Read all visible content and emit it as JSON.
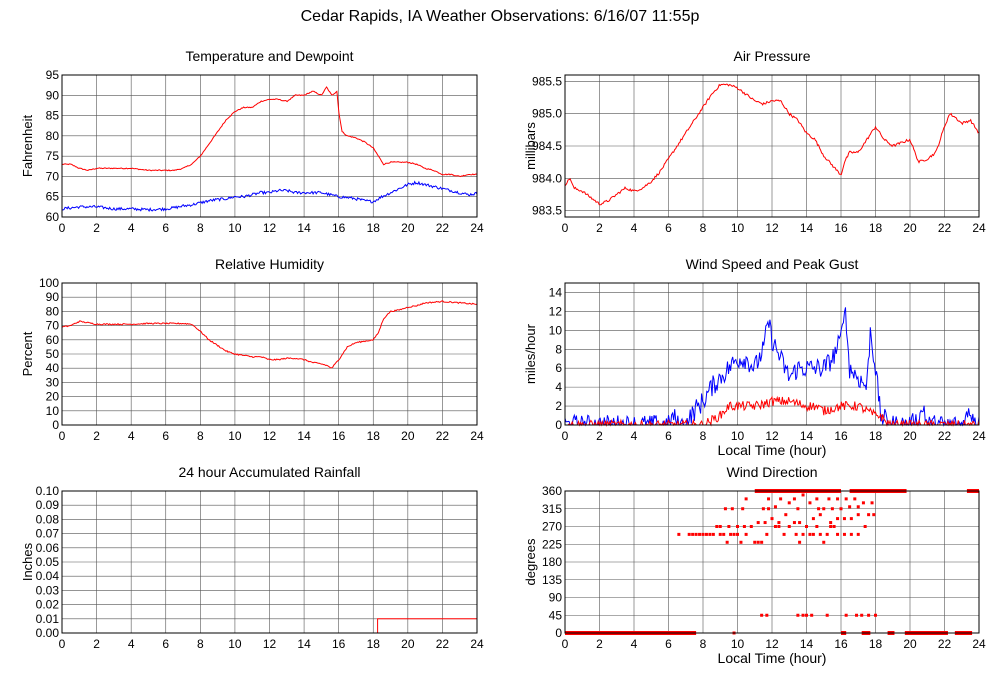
{
  "page": {
    "title": "Cedar Rapids, IA Weather Observations: 6/16/07 11:55p"
  },
  "colors": {
    "red": "#ff0000",
    "blue": "#0000ff",
    "grid": "#555555",
    "frame": "#000000"
  },
  "chart_data": [
    {
      "id": "temp",
      "type": "line",
      "title": "Temperature and Dewpoint",
      "ylabel": "Fahrenheit",
      "xlabel": "",
      "xlim": [
        0,
        24
      ],
      "ylim": [
        60,
        95
      ],
      "xticks": [
        0,
        2,
        4,
        6,
        8,
        10,
        12,
        14,
        16,
        18,
        20,
        22,
        24
      ],
      "yticks": [
        60,
        65,
        70,
        75,
        80,
        85,
        90,
        95
      ],
      "grid": true,
      "series": [
        {
          "color": "#ff0000",
          "noise": 0.25,
          "x": [
            0,
            0.5,
            1,
            1.5,
            2,
            3,
            4,
            5,
            6,
            6.5,
            7,
            7.5,
            8,
            8.5,
            9,
            9.5,
            10,
            10.5,
            11,
            11.5,
            12,
            12.5,
            13,
            13.5,
            14,
            14.5,
            15,
            15.3,
            15.6,
            15.9,
            16,
            16.2,
            16.5,
            17,
            17.5,
            18,
            18.3,
            18.6,
            19,
            20,
            20.5,
            21,
            21.5,
            22,
            22.5,
            23,
            23.5,
            24
          ],
          "y": [
            73,
            73,
            72,
            71.5,
            72,
            72,
            72,
            71.5,
            71.5,
            71.5,
            72,
            73,
            75,
            78,
            81,
            84,
            86,
            87,
            87,
            88.5,
            89,
            89,
            88.5,
            90,
            90,
            91,
            90,
            92,
            90,
            91,
            86,
            81,
            80,
            79.5,
            78.5,
            77,
            75,
            73,
            73.5,
            73.5,
            73,
            72,
            71.5,
            70.5,
            70.5,
            70,
            70.5,
            70.5
          ]
        },
        {
          "color": "#0000ff",
          "noise": 0.7,
          "x": [
            0,
            1,
            2,
            3,
            4,
            5,
            6,
            6.5,
            7,
            7.5,
            8,
            8.5,
            9,
            9.5,
            10,
            10.5,
            11,
            11.5,
            12,
            12.5,
            13,
            13.5,
            14,
            14.5,
            15,
            15.5,
            16,
            16.5,
            17,
            17.5,
            18,
            18.5,
            19,
            19.5,
            20,
            20.5,
            21,
            21.5,
            22,
            22.5,
            23,
            23.5,
            24
          ],
          "y": [
            62,
            62.5,
            62.5,
            62,
            62,
            61.8,
            62,
            62.3,
            62.7,
            63,
            63.5,
            64,
            64.3,
            64.5,
            65,
            65,
            65.5,
            66,
            66,
            66.5,
            66.5,
            66,
            66,
            66,
            66,
            65.5,
            65,
            64.8,
            64.5,
            64,
            63.8,
            65,
            66,
            67,
            68,
            68.5,
            68,
            67.5,
            67,
            66.5,
            66,
            65.5,
            65.8
          ]
        }
      ]
    },
    {
      "id": "pressure",
      "type": "line",
      "title": "Air Pressure",
      "ylabel": "millibars",
      "xlabel": "",
      "xlim": [
        0,
        24
      ],
      "ylim": [
        983.4,
        985.6
      ],
      "xticks": [
        0,
        2,
        4,
        6,
        8,
        10,
        12,
        14,
        16,
        18,
        20,
        22,
        24
      ],
      "yticks": [
        983.5,
        984.0,
        984.5,
        985.0,
        985.5
      ],
      "ytick_labels": [
        "983.5",
        "984.0",
        "984.5",
        "985.0",
        "985.5"
      ],
      "grid": true,
      "series": [
        {
          "color": "#ff0000",
          "noise": 0.04,
          "x": [
            0,
            0.3,
            0.5,
            1,
            1.5,
            2,
            2.5,
            3,
            3.5,
            4,
            4.5,
            5,
            5.5,
            6,
            6.5,
            7,
            7.5,
            8,
            8.5,
            9,
            9.5,
            10,
            10.5,
            11,
            11.5,
            12,
            12.5,
            13,
            13.5,
            14,
            14.5,
            15,
            15.5,
            16,
            16.2,
            16.5,
            17,
            17.5,
            18,
            18.5,
            19,
            19.5,
            20,
            20.5,
            21,
            21.5,
            22,
            22.3,
            22.6,
            23,
            23.5,
            24
          ],
          "y": [
            983.9,
            984.0,
            983.85,
            983.8,
            983.7,
            983.6,
            983.65,
            983.75,
            983.85,
            983.8,
            983.85,
            983.95,
            984.1,
            984.3,
            984.5,
            984.7,
            984.9,
            985.1,
            985.3,
            985.45,
            985.45,
            985.4,
            985.3,
            985.2,
            985.15,
            985.2,
            985.2,
            985.0,
            984.9,
            984.7,
            984.6,
            984.35,
            984.2,
            984.05,
            984.25,
            984.4,
            984.4,
            984.6,
            984.8,
            984.6,
            984.5,
            984.55,
            984.6,
            984.25,
            984.3,
            984.4,
            984.8,
            985.0,
            984.95,
            984.85,
            984.9,
            984.7
          ]
        }
      ]
    },
    {
      "id": "humidity",
      "type": "line",
      "title": "Relative Humidity",
      "ylabel": "Percent",
      "xlabel": "",
      "xlim": [
        0,
        24
      ],
      "ylim": [
        0,
        100
      ],
      "xticks": [
        0,
        2,
        4,
        6,
        8,
        10,
        12,
        14,
        16,
        18,
        20,
        22,
        24
      ],
      "yticks": [
        0,
        10,
        20,
        30,
        40,
        50,
        60,
        70,
        80,
        90,
        100
      ],
      "grid": true,
      "series": [
        {
          "color": "#ff0000",
          "noise": 0.9,
          "x": [
            0,
            0.5,
            1,
            1.5,
            2,
            3,
            4,
            5,
            6,
            7,
            7.5,
            8,
            8.5,
            9,
            9.5,
            10,
            10.5,
            11,
            11.5,
            12,
            12.5,
            13,
            13.5,
            14,
            14.5,
            15,
            15.3,
            15.6,
            16,
            16.5,
            17,
            17.5,
            18,
            18.3,
            18.6,
            19,
            19.5,
            20,
            20.5,
            21,
            22,
            23,
            24
          ],
          "y": [
            69,
            70,
            73,
            72,
            71,
            71,
            71,
            71.5,
            71.5,
            71.5,
            71,
            66,
            60,
            56,
            52,
            50,
            49,
            48,
            48,
            46,
            46,
            47,
            47,
            46,
            44,
            43,
            42,
            40,
            46,
            55,
            58,
            59,
            60,
            65,
            75,
            80,
            81,
            83,
            84,
            86,
            87,
            86,
            85
          ]
        }
      ]
    },
    {
      "id": "wind",
      "type": "line",
      "title": "Wind Speed and Peak Gust",
      "ylabel": "miles/hour",
      "xlabel": "Local Time (hour)",
      "xlim": [
        0,
        24
      ],
      "ylim": [
        0,
        15
      ],
      "xticks": [
        0,
        2,
        4,
        6,
        8,
        10,
        12,
        14,
        16,
        18,
        20,
        22,
        24
      ],
      "yticks": [
        0,
        2,
        4,
        6,
        8,
        10,
        12,
        14
      ],
      "grid": true,
      "series": [
        {
          "color": "#0000ff",
          "noise": 2.2,
          "x": [
            0,
            6,
            6.3,
            6.5,
            7,
            7.5,
            8,
            8.5,
            9,
            9.5,
            10,
            10.5,
            11,
            11.5,
            11.8,
            12,
            12.5,
            13,
            13.5,
            14,
            14.5,
            15,
            15.5,
            16,
            16.2,
            16.5,
            17,
            17.5,
            17.7,
            18,
            18.3,
            18.6,
            19,
            19.5,
            20,
            20.5,
            20.8,
            21,
            22,
            23,
            23.5,
            24
          ],
          "y": [
            0,
            0,
            1,
            0,
            0,
            1.5,
            2.5,
            4,
            5,
            6,
            7,
            7,
            6,
            8,
            11,
            9,
            7,
            5,
            6,
            6,
            6,
            6,
            7,
            9,
            13,
            6,
            5,
            4,
            10,
            6,
            1,
            0.5,
            0,
            0,
            0,
            0.5,
            2,
            0,
            0,
            0,
            1.5,
            0
          ]
        },
        {
          "color": "#ff0000",
          "noise": 1.0,
          "x": [
            0,
            8,
            8.5,
            9,
            9.5,
            10,
            11,
            11.5,
            12,
            13,
            14,
            14.5,
            15,
            16,
            16.5,
            17,
            17.5,
            18,
            18.3,
            18.6,
            19,
            24
          ],
          "y": [
            0,
            0,
            0.5,
            1,
            2,
            2,
            2,
            2.2,
            2.5,
            2.5,
            2,
            2,
            1.5,
            2,
            2,
            2,
            1.5,
            1,
            1,
            0.3,
            0,
            0
          ]
        }
      ]
    },
    {
      "id": "rain",
      "type": "line",
      "title": "24 hour Accumulated Rainfall",
      "ylabel": "Inches",
      "xlabel": "",
      "xlim": [
        0,
        24
      ],
      "ylim": [
        0,
        0.1
      ],
      "xticks": [
        0,
        2,
        4,
        6,
        8,
        10,
        12,
        14,
        16,
        18,
        20,
        22,
        24
      ],
      "yticks": [
        0,
        0.01,
        0.02,
        0.03,
        0.04,
        0.05,
        0.06,
        0.07,
        0.08,
        0.09,
        0.1
      ],
      "ytick_labels": [
        "0.00",
        "0.01",
        "0.02",
        "0.03",
        "0.04",
        "0.05",
        "0.06",
        "0.07",
        "0.08",
        "0.09",
        "0.10"
      ],
      "grid": true,
      "series": [
        {
          "color": "#ff0000",
          "noise": 0,
          "x": [
            0,
            18.25,
            18.25,
            24
          ],
          "y": [
            0,
            0,
            0.01,
            0.01
          ]
        }
      ]
    },
    {
      "id": "direction",
      "type": "scatter",
      "title": "Wind Direction",
      "ylabel": "degrees",
      "xlabel": "Local Time (hour)",
      "xlim": [
        0,
        24
      ],
      "ylim": [
        0,
        360
      ],
      "xticks": [
        0,
        2,
        4,
        6,
        8,
        10,
        12,
        14,
        16,
        18,
        20,
        22,
        24
      ],
      "yticks": [
        0,
        45,
        90,
        135,
        180,
        225,
        270,
        315,
        360
      ],
      "grid": true,
      "series": [
        {
          "color": "#ff0000",
          "segments": [
            {
              "x0": 0,
              "x1": 7.6,
              "y": 0
            },
            {
              "x0": 16.0,
              "x1": 16.3,
              "y": 0
            },
            {
              "x0": 17.2,
              "x1": 17.7,
              "y": 0
            },
            {
              "x0": 18.7,
              "x1": 19.1,
              "y": 0
            },
            {
              "x0": 19.7,
              "x1": 22.2,
              "y": 0
            },
            {
              "x0": 22.6,
              "x1": 23.6,
              "y": 0
            },
            {
              "x0": 11.0,
              "x1": 16.0,
              "y": 360
            },
            {
              "x0": 16.5,
              "x1": 19.8,
              "y": 360
            },
            {
              "x0": 23.3,
              "x1": 24.0,
              "y": 360
            }
          ],
          "x": [
            6.6,
            7.2,
            7.4,
            7.6,
            7.8,
            8.0,
            8.2,
            8.4,
            8.6,
            8.8,
            9.0,
            9.2,
            9.4,
            9.6,
            9.8,
            10.0,
            10.2,
            10.5,
            11.0,
            11.2,
            11.4,
            11.7,
            12.2,
            12.4,
            12.7,
            13.0,
            13.4,
            13.6,
            13.8,
            14.2,
            14.4,
            14.6,
            14.8,
            15.0,
            15.2,
            15.4,
            15.6,
            15.8,
            16.2,
            16.6,
            17.0,
            17.4,
            9.0,
            9.5,
            10.0,
            10.4,
            10.8,
            11.2,
            11.6,
            12.0,
            12.4,
            12.8,
            13.3,
            13.6,
            14.0,
            14.4,
            14.8,
            15.4,
            15.8,
            16.2,
            16.6,
            17.0,
            17.6,
            17.9,
            9.3,
            9.7,
            10.3,
            11.5,
            11.8,
            12.2,
            13.0,
            13.5,
            14.2,
            14.7,
            15.0,
            15.5,
            16.0,
            16.5,
            17.0,
            17.3,
            17.8,
            10.5,
            11.8,
            12.5,
            13.3,
            13.8,
            14.6,
            15.3,
            15.8,
            16.3,
            16.8,
            9.8,
            11.4,
            11.7,
            13.5,
            13.8,
            14.0,
            14.3,
            15.2,
            16.3,
            16.9,
            17.2,
            17.6,
            18.0
          ],
          "y": [
            250,
            250,
            250,
            250,
            250,
            250,
            250,
            250,
            250,
            270,
            250,
            250,
            230,
            250,
            250,
            250,
            230,
            250,
            230,
            230,
            230,
            250,
            270,
            270,
            250,
            270,
            250,
            230,
            250,
            250,
            250,
            270,
            250,
            230,
            250,
            270,
            270,
            250,
            250,
            250,
            250,
            270,
            270,
            270,
            270,
            270,
            270,
            280,
            280,
            290,
            280,
            300,
            280,
            280,
            270,
            290,
            300,
            280,
            290,
            290,
            290,
            300,
            300,
            300,
            315,
            315,
            315,
            315,
            315,
            320,
            330,
            315,
            330,
            315,
            315,
            315,
            315,
            320,
            320,
            330,
            330,
            340,
            340,
            340,
            340,
            350,
            340,
            340,
            340,
            340,
            340,
            0,
            45,
            45,
            45,
            45,
            45,
            45,
            45,
            45,
            45,
            45,
            45,
            45
          ]
        }
      ]
    }
  ]
}
